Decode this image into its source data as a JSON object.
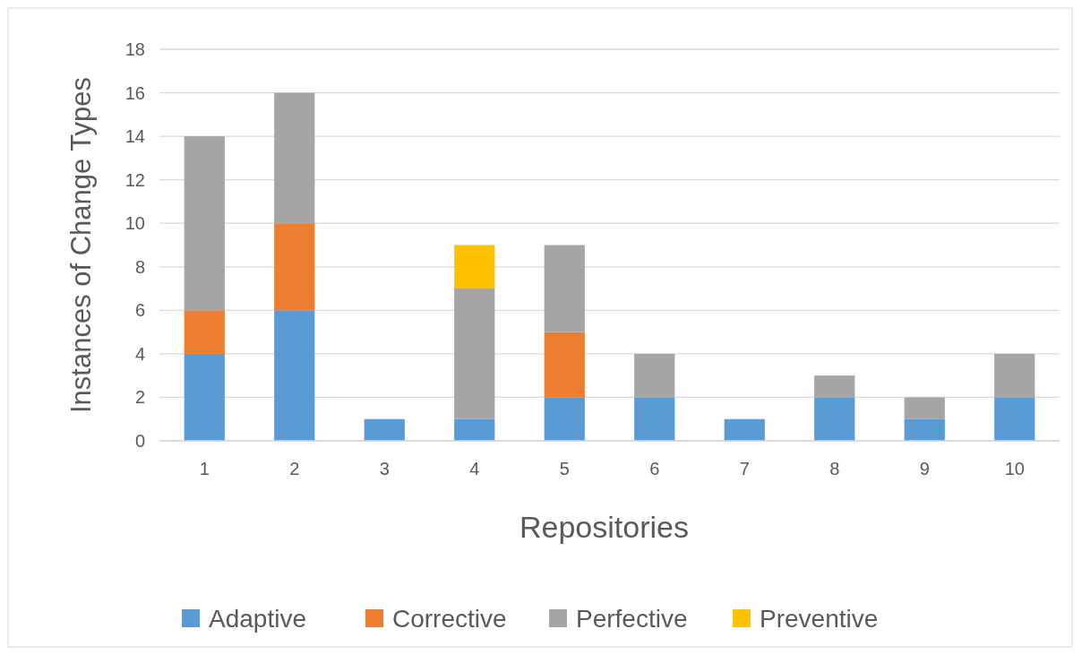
{
  "chart_data": {
    "type": "bar",
    "stacked": true,
    "xlabel": "Repositories",
    "ylabel": "Instances of Change Types",
    "categories": [
      "1",
      "2",
      "3",
      "4",
      "5",
      "6",
      "7",
      "8",
      "9",
      "10"
    ],
    "series": [
      {
        "name": "Adaptive",
        "color": "#5b9bd5",
        "values": [
          4,
          6,
          1,
          1,
          2,
          2,
          1,
          2,
          1,
          2
        ]
      },
      {
        "name": "Corrective",
        "color": "#ed7d31",
        "values": [
          2,
          4,
          0,
          0,
          3,
          0,
          0,
          0,
          0,
          0
        ]
      },
      {
        "name": "Perfective",
        "color": "#a5a5a5",
        "values": [
          8,
          6,
          0,
          6,
          4,
          2,
          0,
          1,
          1,
          2
        ]
      },
      {
        "name": "Preventive",
        "color": "#ffc000",
        "values": [
          0,
          0,
          0,
          2,
          0,
          0,
          0,
          0,
          0,
          0
        ]
      }
    ],
    "ylim": [
      0,
      18
    ],
    "yticks": [
      0,
      2,
      4,
      6,
      8,
      10,
      12,
      14,
      16,
      18
    ],
    "grid": "y",
    "legend": "bottom"
  }
}
